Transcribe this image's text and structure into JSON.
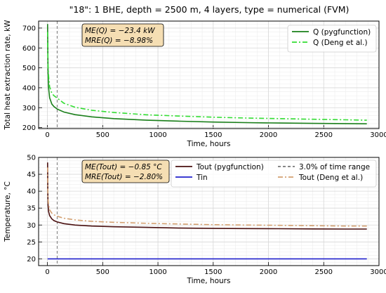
{
  "figure": {
    "title": "\"18\": 1 BHE, depth = 2500 m, 4 layers, type = numerical (FVM)"
  },
  "chart_data": [
    {
      "type": "line",
      "xlabel": "Time, hours",
      "ylabel": "Total heat extraction rate, kW",
      "xlim": [
        -80,
        3000
      ],
      "ylim": [
        195,
        735
      ],
      "xticks": [
        0,
        500,
        1000,
        1500,
        2000,
        2500,
        3000
      ],
      "yticks": [
        200,
        300,
        400,
        500,
        600,
        700
      ],
      "grid": true,
      "legend": "top-right",
      "annotation": {
        "line1": "ME(Q) = −23.4 kW",
        "line2": "MRE(Q) = −8.98%"
      },
      "vline": {
        "x": 88
      },
      "series": [
        {
          "name": "Q (pygfunction)",
          "color": "#1a7f1a",
          "style": "solid",
          "x": [
            1,
            3,
            5,
            10,
            20,
            40,
            60,
            88,
            150,
            250,
            400,
            600,
            900,
            1200,
            1500,
            1800,
            2100,
            2400,
            2700,
            2890
          ],
          "y": [
            720,
            600,
            480,
            400,
            350,
            318,
            305,
            293,
            278,
            265,
            254,
            245,
            237,
            232,
            228,
            225,
            223,
            221,
            220,
            219
          ]
        },
        {
          "name": "Q (Deng et al.)",
          "color": "#33dd33",
          "style": "dashdot",
          "x": [
            1,
            3,
            5,
            10,
            20,
            40,
            60,
            88,
            150,
            250,
            400,
            600,
            900,
            1200,
            1500,
            1800,
            2100,
            2400,
            2700,
            2890
          ],
          "y": [
            680,
            610,
            520,
            460,
            405,
            372,
            360,
            348,
            322,
            302,
            287,
            276,
            264,
            258,
            252,
            248,
            245,
            242,
            239,
            237
          ]
        }
      ]
    },
    {
      "type": "line",
      "xlabel": "Time, hours",
      "ylabel": "Temperature, °C",
      "xlim": [
        -80,
        3000
      ],
      "ylim": [
        18,
        50
      ],
      "xticks": [
        0,
        500,
        1000,
        1500,
        2000,
        2500,
        3000
      ],
      "yticks": [
        20,
        25,
        30,
        35,
        40,
        45,
        50
      ],
      "grid": true,
      "legend": "top-right",
      "annotation": {
        "line1": "ME(Tout) = −0.85 °C",
        "line2": "MRE(Tout) = −2.80%"
      },
      "vline": {
        "x": 88,
        "label": "3.0% of time range"
      },
      "series": [
        {
          "name": "Tout (pygfunction)",
          "color": "#4a1010",
          "style": "solid",
          "x": [
            1,
            3,
            5,
            10,
            20,
            40,
            60,
            88,
            150,
            250,
            400,
            600,
            900,
            1200,
            1500,
            1800,
            2100,
            2400,
            2700,
            2890
          ],
          "y": [
            48.5,
            40,
            36,
            34,
            32.8,
            31.8,
            31.3,
            30.9,
            30.4,
            30.0,
            29.7,
            29.5,
            29.3,
            29.1,
            29.0,
            28.95,
            28.9,
            28.85,
            28.8,
            28.8
          ]
        },
        {
          "name": "Tin",
          "color": "#2020cc",
          "style": "solid",
          "x": [
            1,
            2890
          ],
          "y": [
            20,
            20
          ]
        },
        {
          "name": "Tout (Deng et al.)",
          "color": "#d4a070",
          "style": "dashdot",
          "x": [
            1,
            3,
            5,
            10,
            20,
            40,
            60,
            88,
            150,
            250,
            400,
            600,
            900,
            1200,
            1500,
            1800,
            2100,
            2400,
            2700,
            2890
          ],
          "y": [
            47,
            42,
            38,
            36,
            34.5,
            33.5,
            33.0,
            32.6,
            32.0,
            31.5,
            31.1,
            30.8,
            30.5,
            30.3,
            30.1,
            30.0,
            29.9,
            29.8,
            29.7,
            29.7
          ]
        }
      ]
    }
  ]
}
